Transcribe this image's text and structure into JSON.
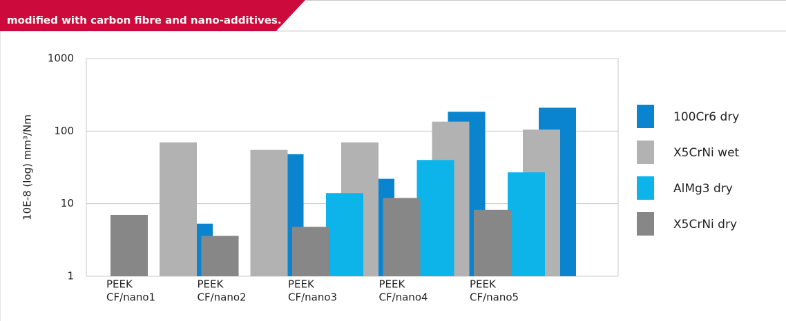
{
  "chart_data": {
    "type": "bar",
    "title": "modified with carbon fibre and nano-additives.",
    "ylabel": "10E-8 (log) mm³/Nm",
    "categories": [
      [
        "PEEK",
        "CF/nano1"
      ],
      [
        "PEEK",
        "CF/nano2"
      ],
      [
        "PEEK",
        "CF/nano3"
      ],
      [
        "PEEK",
        "CF/nano4"
      ],
      [
        "PEEK",
        "CF/nano5"
      ]
    ],
    "series": [
      {
        "name": "X5CrNi dry",
        "color": "#878787",
        "values": [
          7,
          3.6,
          4.8,
          12,
          8.2
        ]
      },
      {
        "name": "AlMg3 dry",
        "color": "#0db4ea",
        "values": [
          null,
          null,
          14,
          40,
          27
        ]
      },
      {
        "name": "X5CrNi wet",
        "color": "#b2b2b2",
        "values": [
          70,
          55,
          70,
          135,
          105
        ]
      },
      {
        "name": "100Cr6 dry",
        "color": "#0a84cf",
        "values": [
          5.3,
          48,
          22,
          185,
          210
        ]
      }
    ],
    "ylim": [
      1,
      1000
    ],
    "yticks": [
      1,
      10,
      100,
      1000
    ],
    "log_y": true,
    "grid": true
  }
}
